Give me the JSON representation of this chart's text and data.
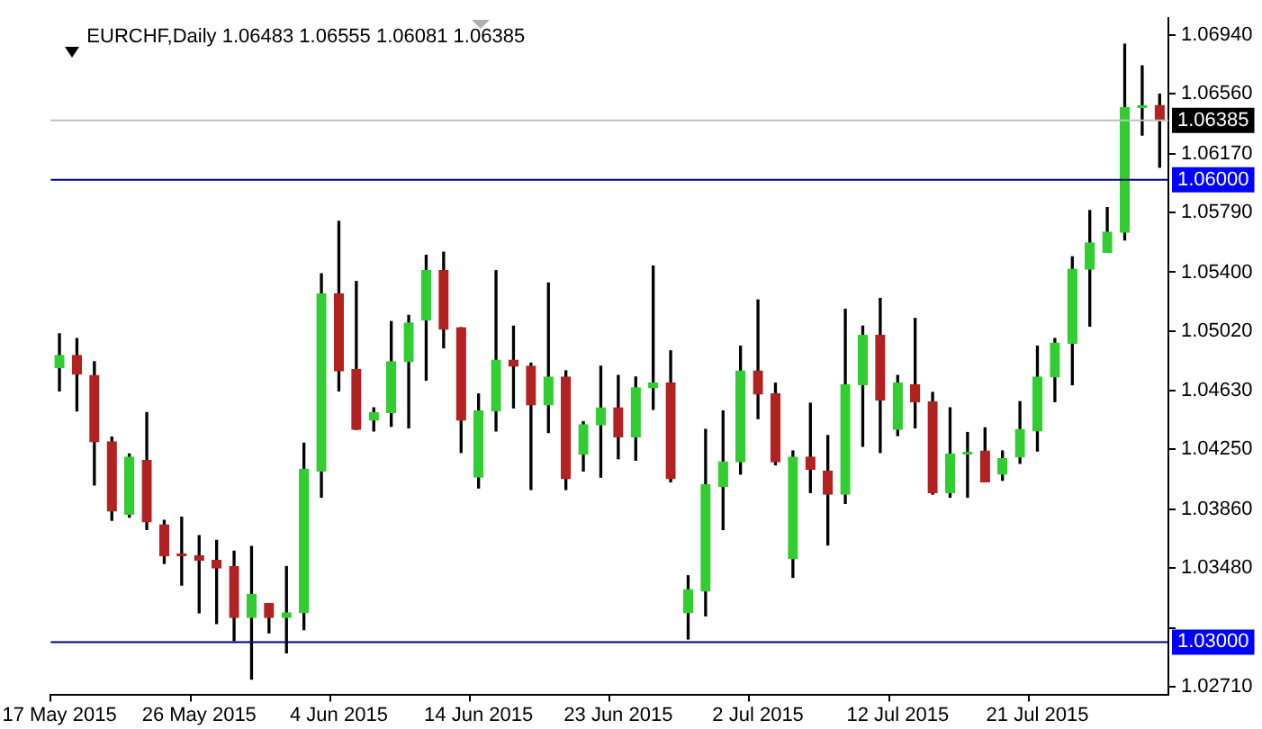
{
  "chart_data": {
    "type": "candlestick",
    "title": "EURCHF,Daily 1.06483 1.06555 1.06081 1.06385",
    "categories": [
      "17 May 2015",
      null,
      null,
      null,
      null,
      null,
      null,
      null,
      "26 May 2015",
      null,
      null,
      null,
      null,
      null,
      null,
      null,
      "4 Jun 2015",
      null,
      null,
      null,
      null,
      null,
      null,
      null,
      "14 Jun 2015",
      null,
      null,
      null,
      null,
      null,
      null,
      null,
      "23 Jun 2015",
      null,
      null,
      null,
      null,
      null,
      null,
      null,
      "2 Jul 2015",
      null,
      null,
      null,
      null,
      null,
      null,
      null,
      "12 Jul 2015",
      null,
      null,
      null,
      null,
      null,
      null,
      null,
      "21 Jul 2015",
      null,
      null,
      null,
      null,
      null,
      null,
      null
    ],
    "ohlc": [
      [
        1.0478,
        1.05,
        1.0463,
        1.0486
      ],
      [
        1.0486,
        1.0497,
        1.045,
        1.0474
      ],
      [
        1.0473,
        1.0482,
        1.0402,
        1.043
      ],
      [
        1.043,
        1.0433,
        1.0379,
        1.0385
      ],
      [
        1.0383,
        1.0422,
        1.0381,
        1.042
      ],
      [
        1.0418,
        1.0449,
        1.0373,
        1.0378
      ],
      [
        1.0376,
        1.0379,
        1.0351,
        1.0356
      ],
      [
        1.0357,
        1.0381,
        1.0337,
        1.0356
      ],
      [
        1.0356,
        1.0369,
        1.0319,
        1.0353
      ],
      [
        1.0353,
        1.0366,
        1.0312,
        1.0348
      ],
      [
        1.0349,
        1.0359,
        1.0301,
        1.0316
      ],
      [
        1.0316,
        1.0362,
        1.0276,
        1.0331
      ],
      [
        1.0325,
        1.0325,
        1.0306,
        1.0316
      ],
      [
        1.0316,
        1.0349,
        1.0293,
        1.0319
      ],
      [
        1.0319,
        1.0429,
        1.0308,
        1.0412
      ],
      [
        1.0411,
        1.0539,
        1.0394,
        1.0526
      ],
      [
        1.0526,
        1.0573,
        1.0463,
        1.0476
      ],
      [
        1.0477,
        1.0534,
        1.0438,
        1.0438
      ],
      [
        1.0444,
        1.0452,
        1.0437,
        1.0449
      ],
      [
        1.0449,
        1.0508,
        1.044,
        1.0482
      ],
      [
        1.0482,
        1.0512,
        1.0439,
        1.0507
      ],
      [
        1.0509,
        1.0551,
        1.047,
        1.0541
      ],
      [
        1.0541,
        1.0553,
        1.0491,
        1.0503
      ],
      [
        1.0504,
        1.0504,
        1.0423,
        1.0444
      ],
      [
        1.0407,
        1.0461,
        1.04,
        1.045
      ],
      [
        1.045,
        1.0541,
        1.0437,
        1.0483
      ],
      [
        1.0483,
        1.0505,
        1.0452,
        1.0479
      ],
      [
        1.0479,
        1.0481,
        1.0399,
        1.0454
      ],
      [
        1.0454,
        1.0533,
        1.0436,
        1.0472
      ],
      [
        1.0472,
        1.0476,
        1.0399,
        1.0406
      ],
      [
        1.0422,
        1.0443,
        1.0411,
        1.0441
      ],
      [
        1.0441,
        1.0479,
        1.0407,
        1.0452
      ],
      [
        1.0452,
        1.0473,
        1.0419,
        1.0433
      ],
      [
        1.0433,
        1.0472,
        1.0418,
        1.0465
      ],
      [
        1.0465,
        1.0544,
        1.0451,
        1.0468
      ],
      [
        1.0468,
        1.0489,
        1.0404,
        1.0406
      ],
      [
        1.0319,
        1.0343,
        1.0302,
        1.0334
      ],
      [
        1.0333,
        1.0438,
        1.0317,
        1.0402
      ],
      [
        1.0401,
        1.045,
        1.0373,
        1.0417
      ],
      [
        1.0417,
        1.0492,
        1.0409,
        1.0476
      ],
      [
        1.0476,
        1.0522,
        1.0445,
        1.0461
      ],
      [
        1.0461,
        1.0468,
        1.0415,
        1.0417
      ],
      [
        1.0354,
        1.0424,
        1.0342,
        1.042
      ],
      [
        1.042,
        1.0455,
        1.0397,
        1.0412
      ],
      [
        1.0411,
        1.0434,
        1.0363,
        1.0396
      ],
      [
        1.0396,
        1.0516,
        1.039,
        1.0467
      ],
      [
        1.0467,
        1.0505,
        1.0427,
        1.0499
      ],
      [
        1.0499,
        1.0523,
        1.0423,
        1.0457
      ],
      [
        1.0438,
        1.0473,
        1.0434,
        1.0468
      ],
      [
        1.0467,
        1.051,
        1.0439,
        1.0456
      ],
      [
        1.0456,
        1.0462,
        1.0396,
        1.0397
      ],
      [
        1.0397,
        1.0452,
        1.0394,
        1.0422
      ],
      [
        1.0422,
        1.0436,
        1.0394,
        1.0423
      ],
      [
        1.0424,
        1.0439,
        1.0404,
        1.0404
      ],
      [
        1.0409,
        1.0424,
        1.0405,
        1.0419
      ],
      [
        1.042,
        1.0456,
        1.0416,
        1.0438
      ],
      [
        1.0437,
        1.0492,
        1.0424,
        1.0472
      ],
      [
        1.0472,
        1.0497,
        1.0456,
        1.0494
      ],
      [
        1.0494,
        1.055,
        1.0467,
        1.0542
      ],
      [
        1.0542,
        1.058,
        1.0505,
        1.0559
      ],
      [
        1.0553,
        1.0582,
        1.0553,
        1.0566
      ],
      [
        1.0566,
        1.0688,
        1.0561,
        1.0647
      ],
      [
        1.0647,
        1.0674,
        1.0629,
        1.0648
      ],
      [
        1.06483,
        1.06555,
        1.06081,
        1.06385
      ]
    ],
    "colors": [
      "#32cd32",
      "#b22222",
      "#b22222",
      "#b22222",
      "#32cd32",
      "#b22222",
      "#b22222",
      "#b22222",
      "#b22222",
      "#b22222",
      "#b22222",
      "#32cd32",
      "#b22222",
      "#32cd32",
      "#32cd32",
      "#32cd32",
      "#b22222",
      "#b22222",
      "#32cd32",
      "#32cd32",
      "#32cd32",
      "#32cd32",
      "#b22222",
      "#b22222",
      "#32cd32",
      "#32cd32",
      "#b22222",
      "#b22222",
      "#32cd32",
      "#b22222",
      "#32cd32",
      "#32cd32",
      "#b22222",
      "#32cd32",
      "#32cd32",
      "#b22222",
      "#32cd32",
      "#32cd32",
      "#32cd32",
      "#32cd32",
      "#b22222",
      "#b22222",
      "#32cd32",
      "#b22222",
      "#b22222",
      "#32cd32",
      "#32cd32",
      "#b22222",
      "#32cd32",
      "#b22222",
      "#b22222",
      "#32cd32",
      "#32cd32",
      "#b22222",
      "#32cd32",
      "#32cd32",
      "#32cd32",
      "#32cd32",
      "#32cd32",
      "#32cd32",
      "#32cd32",
      "#32cd32",
      "#32cd32",
      "#b22222"
    ],
    "ylim": [
      1.0266,
      1.0705
    ],
    "yticks": [
      {
        "value": 1.0271,
        "label": "1.02710"
      },
      {
        "value": 1.0309,
        "label": null
      },
      {
        "value": 1.0348,
        "label": "1.03480"
      },
      {
        "value": 1.0386,
        "label": "1.03860"
      },
      {
        "value": 1.0425,
        "label": "1.04250"
      },
      {
        "value": 1.0463,
        "label": "1.04630"
      },
      {
        "value": 1.0502,
        "label": "1.05020"
      },
      {
        "value": 1.054,
        "label": "1.05400"
      },
      {
        "value": 1.0579,
        "label": "1.05790"
      },
      {
        "value": 1.0617,
        "label": "1.06170"
      },
      {
        "value": 1.0656,
        "label": "1.06560"
      },
      {
        "value": 1.0694,
        "label": "1.06940"
      }
    ],
    "ref_lines": [
      {
        "axis": "y",
        "value": 1.06385,
        "label": "1.06385",
        "color": "#c0c0c0"
      },
      {
        "axis": "y",
        "value": 1.06,
        "label": "1.06000",
        "color": "#000080"
      },
      {
        "axis": "y",
        "value": 1.03,
        "label": "1.03000",
        "color": "#000080"
      }
    ]
  }
}
